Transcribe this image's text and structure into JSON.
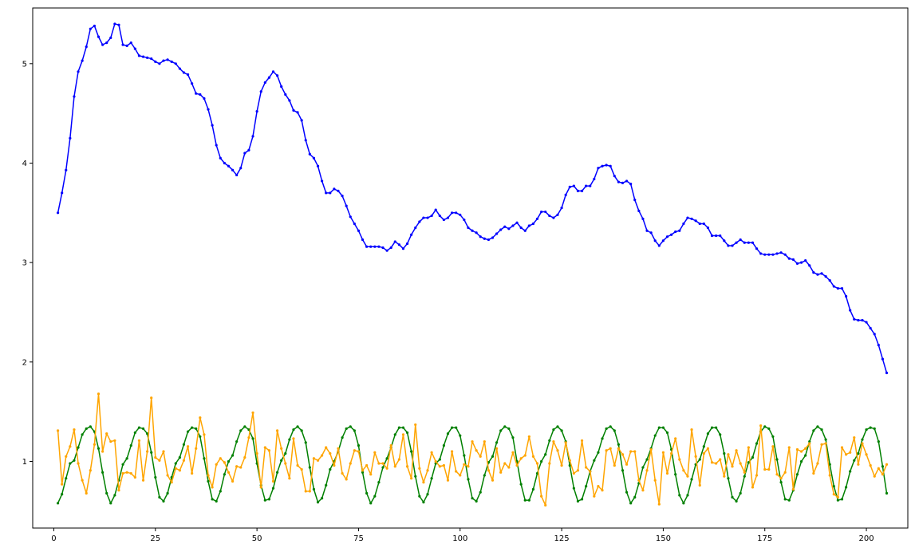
{
  "chart_data": {
    "type": "line",
    "title": "",
    "xlabel": "",
    "ylabel": "",
    "xlim": [
      -5.2,
      210.2
    ],
    "ylim": [
      0.33,
      5.56
    ],
    "grid": false,
    "x_ticks": [
      0,
      25,
      50,
      75,
      100,
      125,
      150,
      175,
      200
    ],
    "y_ticks": [
      1,
      2,
      3,
      4,
      5
    ],
    "x_start": 1,
    "series": [
      {
        "color": "#0000ff",
        "values": [
          3.5,
          3.7,
          3.93,
          4.25,
          4.67,
          4.92,
          5.03,
          5.17,
          5.35,
          5.38,
          5.27,
          5.19,
          5.21,
          5.26,
          5.4,
          5.39,
          5.19,
          5.18,
          5.21,
          5.15,
          5.08,
          5.07,
          5.06,
          5.05,
          5.02,
          5.0,
          5.03,
          5.04,
          5.02,
          5.0,
          4.95,
          4.91,
          4.89,
          4.8,
          4.7,
          4.69,
          4.65,
          4.54,
          4.38,
          4.18,
          4.05,
          4.0,
          3.97,
          3.93,
          3.88,
          3.95,
          4.1,
          4.13,
          4.27,
          4.52,
          4.72,
          4.81,
          4.86,
          4.92,
          4.88,
          4.77,
          4.69,
          4.63,
          4.53,
          4.51,
          4.43,
          4.23,
          4.09,
          4.05,
          3.97,
          3.82,
          3.7,
          3.7,
          3.74,
          3.72,
          3.67,
          3.57,
          3.46,
          3.39,
          3.32,
          3.23,
          3.16,
          3.16,
          3.16,
          3.16,
          3.15,
          3.12,
          3.15,
          3.21,
          3.18,
          3.14,
          3.19,
          3.28,
          3.35,
          3.41,
          3.45,
          3.45,
          3.47,
          3.53,
          3.47,
          3.43,
          3.45,
          3.5,
          3.5,
          3.48,
          3.43,
          3.35,
          3.32,
          3.3,
          3.26,
          3.24,
          3.23,
          3.25,
          3.29,
          3.33,
          3.36,
          3.34,
          3.37,
          3.4,
          3.35,
          3.32,
          3.37,
          3.39,
          3.44,
          3.51,
          3.51,
          3.47,
          3.45,
          3.48,
          3.55,
          3.68,
          3.76,
          3.77,
          3.72,
          3.72,
          3.77,
          3.77,
          3.84,
          3.95,
          3.97,
          3.98,
          3.97,
          3.87,
          3.81,
          3.8,
          3.82,
          3.79,
          3.63,
          3.52,
          3.44,
          3.32,
          3.3,
          3.22,
          3.17,
          3.22,
          3.26,
          3.28,
          3.31,
          3.32,
          3.39,
          3.45,
          3.44,
          3.42,
          3.39,
          3.39,
          3.35,
          3.27,
          3.27,
          3.27,
          3.22,
          3.17,
          3.17,
          3.2,
          3.23,
          3.2,
          3.2,
          3.2,
          3.14,
          3.09,
          3.08,
          3.08,
          3.08,
          3.09,
          3.1,
          3.08,
          3.04,
          3.03,
          2.99,
          3.0,
          3.02,
          2.97,
          2.9,
          2.88,
          2.89,
          2.86,
          2.82,
          2.76,
          2.74,
          2.74,
          2.66,
          2.52,
          2.43,
          2.42,
          2.42,
          2.4,
          2.34,
          2.28,
          2.17,
          2.03,
          1.89
        ]
      },
      {
        "color": "#008000",
        "values": [
          0.58,
          0.67,
          0.83,
          0.98,
          1.01,
          1.14,
          1.27,
          1.33,
          1.35,
          1.3,
          1.13,
          0.89,
          0.68,
          0.58,
          0.66,
          0.81,
          0.97,
          1.03,
          1.16,
          1.29,
          1.34,
          1.33,
          1.28,
          1.09,
          0.84,
          0.64,
          0.6,
          0.68,
          0.84,
          0.98,
          1.04,
          1.17,
          1.3,
          1.34,
          1.33,
          1.25,
          1.03,
          0.8,
          0.62,
          0.6,
          0.7,
          0.87,
          1.0,
          1.06,
          1.2,
          1.31,
          1.35,
          1.32,
          1.23,
          0.98,
          0.76,
          0.61,
          0.62,
          0.73,
          0.89,
          1.01,
          1.08,
          1.22,
          1.32,
          1.35,
          1.31,
          1.19,
          0.94,
          0.72,
          0.59,
          0.63,
          0.76,
          0.92,
          1.0,
          1.1,
          1.24,
          1.33,
          1.35,
          1.31,
          1.16,
          0.89,
          0.68,
          0.58,
          0.65,
          0.79,
          0.94,
          1.03,
          1.14,
          1.27,
          1.34,
          1.34,
          1.29,
          1.1,
          0.85,
          0.65,
          0.59,
          0.67,
          0.83,
          0.98,
          1.02,
          1.16,
          1.28,
          1.34,
          1.34,
          1.26,
          1.06,
          0.82,
          0.63,
          0.6,
          0.69,
          0.86,
          0.99,
          1.05,
          1.19,
          1.31,
          1.35,
          1.33,
          1.24,
          1.0,
          0.77,
          0.61,
          0.61,
          0.72,
          0.88,
          1.0,
          1.07,
          1.21,
          1.32,
          1.35,
          1.31,
          1.2,
          0.96,
          0.73,
          0.6,
          0.62,
          0.75,
          0.9,
          1.01,
          1.09,
          1.23,
          1.33,
          1.35,
          1.31,
          1.17,
          0.91,
          0.69,
          0.58,
          0.64,
          0.78,
          0.94,
          1.02,
          1.13,
          1.26,
          1.34,
          1.34,
          1.29,
          1.12,
          0.87,
          0.66,
          0.58,
          0.66,
          0.82,
          0.97,
          1.02,
          1.15,
          1.28,
          1.34,
          1.34,
          1.27,
          1.08,
          0.83,
          0.64,
          0.6,
          0.68,
          0.85,
          0.99,
          1.04,
          1.18,
          1.3,
          1.35,
          1.33,
          1.25,
          1.02,
          0.79,
          0.62,
          0.61,
          0.71,
          0.87,
          1.0,
          1.06,
          1.2,
          1.31,
          1.35,
          1.32,
          1.22,
          0.97,
          0.75,
          0.61,
          0.62,
          0.74,
          0.9,
          1.01,
          1.08,
          1.22,
          1.32,
          1.34,
          1.33,
          1.2,
          0.95,
          0.68
        ]
      },
      {
        "color": "#ffa500",
        "values": [
          1.31,
          0.77,
          1.05,
          1.15,
          1.32,
          0.98,
          0.81,
          0.68,
          0.91,
          1.17,
          1.68,
          1.1,
          1.28,
          1.2,
          1.21,
          0.71,
          0.88,
          0.89,
          0.88,
          0.84,
          1.21,
          0.81,
          1.1,
          1.64,
          1.04,
          1.01,
          1.1,
          0.86,
          0.79,
          0.93,
          0.91,
          1.01,
          1.15,
          0.88,
          1.13,
          1.44,
          1.27,
          0.86,
          0.74,
          0.97,
          1.03,
          0.99,
          0.89,
          0.8,
          0.95,
          0.94,
          1.04,
          1.24,
          1.49,
          1.08,
          0.74,
          1.14,
          1.11,
          0.8,
          1.31,
          1.13,
          0.98,
          0.83,
          1.23,
          0.96,
          0.92,
          0.7,
          0.7,
          1.03,
          1.01,
          1.06,
          1.14,
          1.08,
          0.96,
          1.13,
          0.88,
          0.82,
          0.98,
          1.11,
          1.1,
          0.91,
          0.96,
          0.87,
          1.09,
          0.98,
          0.98,
          0.93,
          1.16,
          0.95,
          1.02,
          1.27,
          0.95,
          0.83,
          1.37,
          0.93,
          0.79,
          0.91,
          1.09,
          1.0,
          0.95,
          0.96,
          0.81,
          1.1,
          0.9,
          0.86,
          0.97,
          0.95,
          1.2,
          1.11,
          1.05,
          1.2,
          0.91,
          0.81,
          1.13,
          0.89,
          0.98,
          0.94,
          1.09,
          0.96,
          1.03,
          1.06,
          1.25,
          1.05,
          0.98,
          0.65,
          0.56,
          0.98,
          1.2,
          1.11,
          0.96,
          1.19,
          1.01,
          0.88,
          0.91,
          1.21,
          0.94,
          0.9,
          0.65,
          0.75,
          0.71,
          1.11,
          1.13,
          0.96,
          1.13,
          1.07,
          0.97,
          1.1,
          1.1,
          0.81,
          0.71,
          0.91,
          1.12,
          0.81,
          0.57,
          1.09,
          0.88,
          1.08,
          1.23,
          1.02,
          0.91,
          0.85,
          1.32,
          1.05,
          0.76,
          1.08,
          1.13,
          0.99,
          0.98,
          1.02,
          0.85,
          1.07,
          0.95,
          1.11,
          0.98,
          0.89,
          1.14,
          0.74,
          0.86,
          1.36,
          0.92,
          0.92,
          1.15,
          0.87,
          0.83,
          0.89,
          1.14,
          0.72,
          1.12,
          1.1,
          1.13,
          1.18,
          0.88,
          0.98,
          1.17,
          1.18,
          0.86,
          0.67,
          0.64,
          1.14,
          1.07,
          1.09,
          1.24,
          0.97,
          1.18,
          1.07,
          0.96,
          0.85,
          0.93,
          0.87,
          0.97
        ]
      }
    ]
  }
}
